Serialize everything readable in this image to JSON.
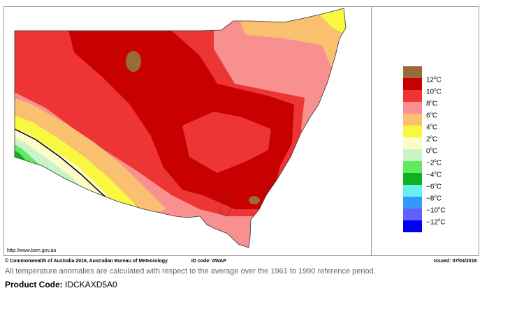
{
  "map": {
    "url": "http://www.bom.gov.au",
    "copyright": "© Commonwealth of Australia 2016, Australian Bureau of Meteorology",
    "id_code": "ID code: AWAP",
    "issued": "Issued: 07/04/2016"
  },
  "legend": {
    "items": [
      {
        "label": "12",
        "unit": "C",
        "color": "#9b6a3a"
      },
      {
        "label": "10",
        "unit": "C",
        "color": "#c80000"
      },
      {
        "label": "8",
        "unit": "C",
        "color": "#ee3535"
      },
      {
        "label": "6",
        "unit": "C",
        "color": "#f99090"
      },
      {
        "label": "4",
        "unit": "C",
        "color": "#f9c070"
      },
      {
        "label": "2",
        "unit": "C",
        "color": "#f8f840"
      },
      {
        "label": "0",
        "unit": "C",
        "color": "#fcfcc8"
      },
      {
        "label": "−2",
        "unit": "C",
        "color": "#c9f4c9"
      },
      {
        "label": "−4",
        "unit": "C",
        "color": "#5fea5f"
      },
      {
        "label": "−6",
        "unit": "C",
        "color": "#10b020"
      },
      {
        "label": "−8",
        "unit": "C",
        "color": "#66f2f2"
      },
      {
        "label": "−10",
        "unit": "C",
        "color": "#3399ff"
      },
      {
        "label": "−12",
        "unit": "C",
        "color": "#6060ff"
      }
    ],
    "bottom_color": "#0000f0"
  },
  "note": "All temperature anomalies are calculated with respect to the average over the 1961 to 1990 reference period.",
  "product": {
    "label": "Product Code:",
    "code": "IDCKAXD5A0"
  }
}
